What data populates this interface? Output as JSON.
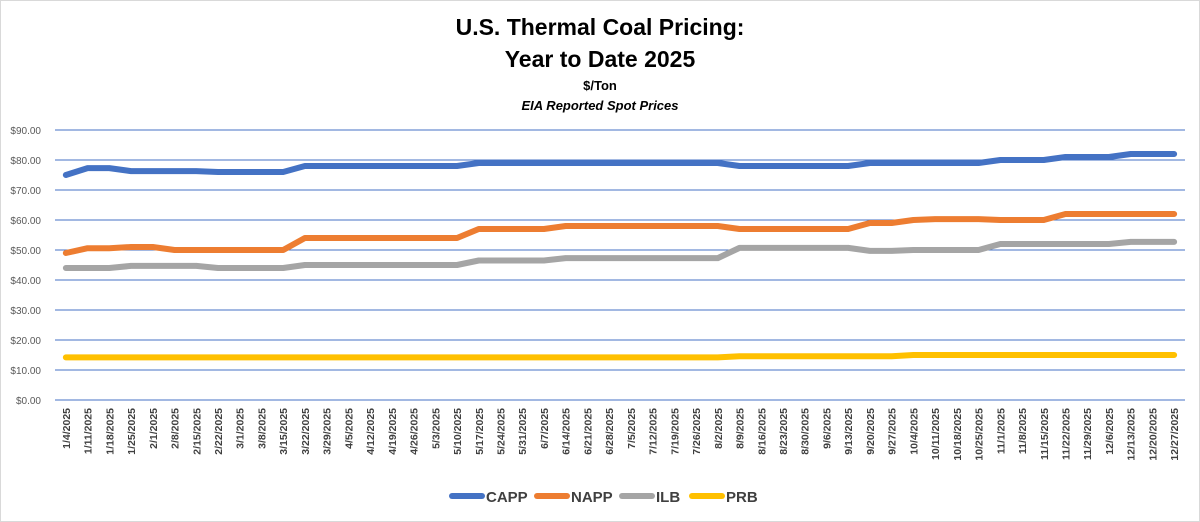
{
  "chart_data": {
    "type": "line",
    "title": "U.S. Thermal Coal Pricing:",
    "title_line2": "Year to Date 2025",
    "unit_label": "$/Ton",
    "subtitle": "EIA Reported Spot Prices",
    "ylim": [
      0,
      90
    ],
    "yticks": [
      "$0.00",
      "$10.00",
      "$20.00",
      "$30.00",
      "$40.00",
      "$50.00",
      "$60.00",
      "$70.00",
      "$80.00",
      "$90.00"
    ],
    "grid": true,
    "legend": "bottom",
    "categories": [
      "1/4/2025",
      "1/11/2025",
      "1/18/2025",
      "1/25/2025",
      "2/1/2025",
      "2/8/2025",
      "2/15/2025",
      "2/22/2025",
      "3/1/2025",
      "3/8/2025",
      "3/15/2025",
      "3/22/2025",
      "3/29/2025",
      "4/5/2025",
      "4/12/2025",
      "4/19/2025",
      "4/26/2025",
      "5/3/2025",
      "5/10/2025",
      "5/17/2025",
      "5/24/2025",
      "5/31/2025",
      "6/7/2025",
      "6/14/2025",
      "6/21/2025",
      "6/28/2025",
      "7/5/2025",
      "7/12/2025",
      "7/19/2025",
      "7/26/2025",
      "8/2/2025",
      "8/9/2025",
      "8/16/2025",
      "8/23/2025",
      "8/30/2025",
      "9/6/2025",
      "9/13/2025",
      "9/20/2025",
      "9/27/2025",
      "10/4/2025",
      "10/11/2025",
      "10/18/2025",
      "10/25/2025",
      "11/1/2025",
      "11/8/2025",
      "11/15/2025",
      "11/22/2025",
      "11/29/2025",
      "12/6/2025",
      "12/13/2025",
      "12/20/2025",
      "12/27/2025"
    ],
    "series": [
      {
        "name": "CAPP",
        "color": "#4472C4",
        "values": [
          75,
          77.3,
          77.3,
          76.3,
          76.3,
          76.3,
          76.3,
          76,
          76,
          76,
          76,
          78,
          78,
          78,
          78,
          78,
          78,
          78,
          78,
          79,
          79,
          79,
          79,
          79,
          79,
          79,
          79,
          79,
          79,
          79,
          79,
          78,
          78,
          78,
          78,
          78,
          78,
          79,
          79,
          79,
          79,
          79,
          79,
          80,
          80,
          80,
          81,
          81,
          81,
          82,
          82,
          82
        ]
      },
      {
        "name": "NAPP",
        "color": "#ED7D31",
        "values": [
          49,
          50.6,
          50.6,
          51,
          51,
          50,
          50,
          50,
          50,
          50,
          50,
          54,
          54,
          54,
          54,
          54,
          54,
          54,
          54,
          57,
          57,
          57,
          57,
          58,
          58,
          58,
          58,
          58,
          58,
          58,
          58,
          57,
          57,
          57,
          57,
          57,
          57,
          59,
          59,
          60,
          60.3,
          60.3,
          60.3,
          60,
          60,
          60,
          62,
          62,
          62,
          62,
          62,
          62
        ]
      },
      {
        "name": "ILB",
        "color": "#A5A5A5",
        "values": [
          44,
          44,
          44,
          44.7,
          44.7,
          44.7,
          44.7,
          44,
          44,
          44,
          44,
          45,
          45,
          45,
          45,
          45,
          45,
          45,
          45,
          46.5,
          46.5,
          46.5,
          46.5,
          47.3,
          47.3,
          47.3,
          47.3,
          47.3,
          47.3,
          47.3,
          47.3,
          50.7,
          50.7,
          50.7,
          50.7,
          50.7,
          50.7,
          49.7,
          49.7,
          50,
          50,
          50,
          50,
          52,
          52,
          52,
          52,
          52,
          52,
          52.7,
          52.7,
          52.7
        ]
      },
      {
        "name": "PRB",
        "color": "#FFC000",
        "values": [
          14.2,
          14.2,
          14.2,
          14.2,
          14.2,
          14.2,
          14.2,
          14.2,
          14.2,
          14.2,
          14.2,
          14.2,
          14.2,
          14.2,
          14.2,
          14.2,
          14.2,
          14.2,
          14.2,
          14.2,
          14.2,
          14.2,
          14.2,
          14.2,
          14.2,
          14.2,
          14.2,
          14.2,
          14.2,
          14.2,
          14.2,
          14.6,
          14.6,
          14.6,
          14.6,
          14.6,
          14.6,
          14.6,
          14.6,
          15,
          15,
          15,
          15,
          15,
          15,
          15,
          15,
          15,
          15,
          15,
          15,
          15
        ]
      }
    ]
  }
}
